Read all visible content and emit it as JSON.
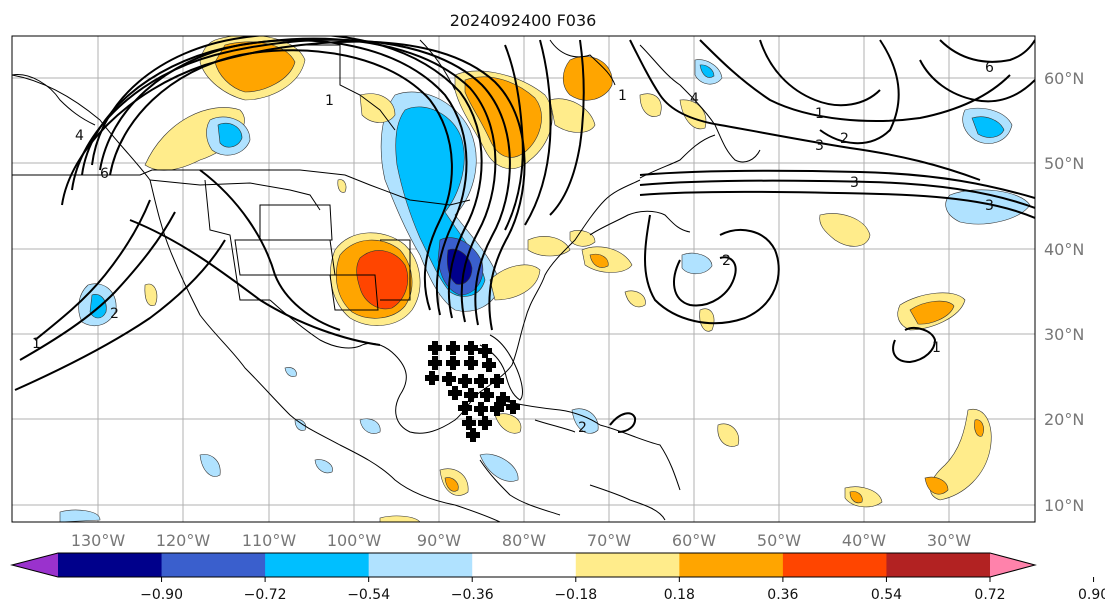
{
  "title": "2024092400 F036",
  "lon_ticks": [
    "130°W",
    "120°W",
    "110°W",
    "100°W",
    "90°W",
    "80°W",
    "70°W",
    "60°W",
    "50°W",
    "40°W",
    "30°W"
  ],
  "lat_ticks": [
    "60°N",
    "50°N",
    "40°N",
    "30°N",
    "20°N",
    "10°N"
  ],
  "colorbar": {
    "colors": [
      "#9a32cd",
      "#00008b",
      "#3a5fcd",
      "#00bfff",
      "#b0e2ff",
      "#ffffff",
      "#ffec8b",
      "#ffa500",
      "#ff4500",
      "#b22222",
      "#ff82ab"
    ],
    "ticks": [
      "−0.90",
      "−0.72",
      "−0.54",
      "−0.36",
      "−0.18",
      "0.18",
      "0.36",
      "0.54",
      "0.72",
      "0.90"
    ]
  },
  "contour_labels": [
    "1",
    "2",
    "3",
    "4",
    "6",
    "1",
    "2",
    "3",
    "1",
    "2",
    "1",
    "4",
    "6",
    "2",
    "1",
    "3"
  ]
}
